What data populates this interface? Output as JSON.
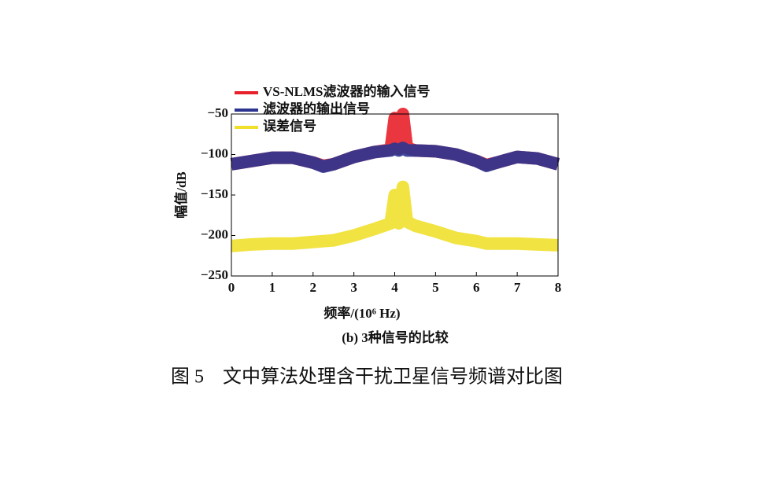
{
  "chart_data": {
    "type": "line",
    "subtitle": "(b) 3种信号的比较",
    "caption": "图 5　文中算法处理含干扰卫星信号频谱对比图",
    "xlabel": "频率/(10⁶ Hz)",
    "ylabel": "幅值/dB",
    "x": [
      0,
      0.5,
      1,
      1.5,
      2,
      2.25,
      2.5,
      3,
      3.5,
      3.9,
      4.0,
      4.1,
      4.2,
      4.3,
      4.5,
      5,
      5.5,
      6,
      6.25,
      6.5,
      7,
      7.5,
      8
    ],
    "series": [
      {
        "name": "VS-NLMS滤波器的输入信号",
        "color": "#e8202a",
        "values": [
          -112,
          -108,
          -104,
          -104,
          -110,
          -114,
          -112,
          -103,
          -97,
          -94,
          -55,
          -93,
          -50,
          -92,
          -95,
          -96,
          -100,
          -108,
          -113,
          -110,
          -103,
          -105,
          -112
        ]
      },
      {
        "name": "滤波器的输出信号",
        "color": "#2b3590",
        "values": [
          -112,
          -108,
          -104,
          -104,
          -110,
          -115,
          -112,
          -103,
          -97,
          -95,
          -93,
          -95,
          -92,
          -95,
          -95,
          -96,
          -100,
          -108,
          -114,
          -110,
          -103,
          -105,
          -112
        ]
      },
      {
        "name": "误差信号",
        "color": "#f0e02c",
        "values": [
          -213,
          -211,
          -210,
          -210,
          -208,
          -207,
          -206,
          -200,
          -192,
          -185,
          -150,
          -185,
          -140,
          -183,
          -188,
          -195,
          -203,
          -207,
          -210,
          -210,
          -210,
          -211,
          -212
        ]
      }
    ],
    "xlim": [
      0,
      8
    ],
    "xticks": [
      0,
      1,
      2,
      3,
      4,
      5,
      6,
      7,
      8
    ],
    "ylim": [
      -250,
      -50
    ],
    "yticks": [
      {
        "value": -250,
        "label": "−250"
      },
      {
        "value": -200,
        "label": "−200"
      },
      {
        "value": -150,
        "label": "−150"
      },
      {
        "value": -100,
        "label": "−100"
      },
      {
        "value": -50,
        "label": "−50"
      }
    ],
    "legend": "top-left",
    "grid": false
  }
}
